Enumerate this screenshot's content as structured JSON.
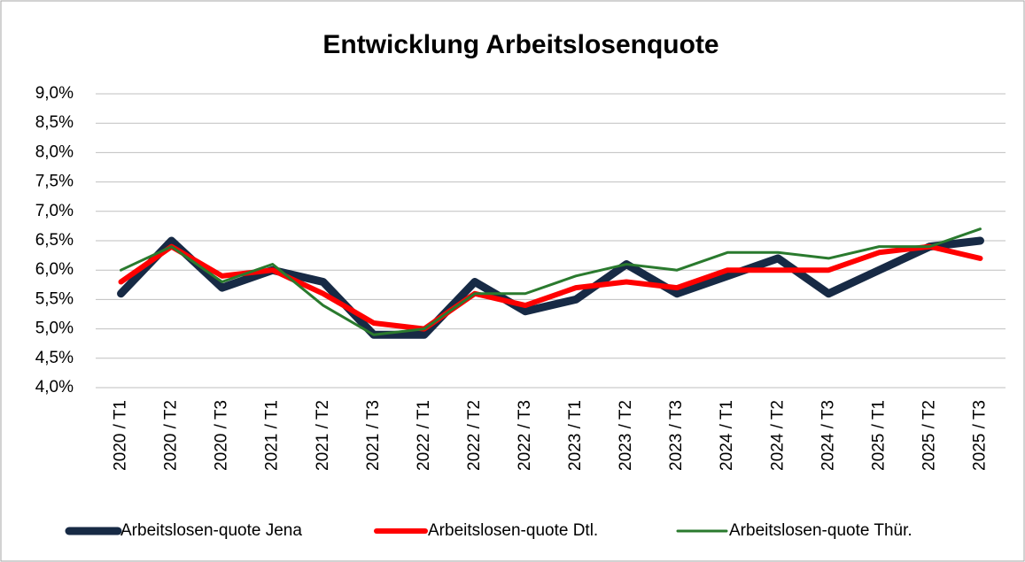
{
  "chart_data": {
    "type": "line",
    "title": "Entwicklung Arbeitslosenquote",
    "categories": [
      "2020 / T1",
      "2020 / T2",
      "2020 / T3",
      "2021 / T1",
      "2021 / T2",
      "2021 / T3",
      "2022 / T1",
      "2022 / T2",
      "2022 / T3",
      "2023 / T1",
      "2023 / T2",
      "2023 / T3",
      "2024 / T1",
      "2024 / T2",
      "2024 / T3",
      "2025 / T1",
      "2025 / T2",
      "2025 / T3"
    ],
    "series": [
      {
        "name": "Arbeitslosen-quote Jena",
        "color": "#172a45",
        "values": [
          5.6,
          6.5,
          5.7,
          6.0,
          5.8,
          4.9,
          4.9,
          5.8,
          5.3,
          5.5,
          6.1,
          5.6,
          5.9,
          6.2,
          5.6,
          6.0,
          6.4,
          6.5
        ]
      },
      {
        "name": "Arbeitslosen-quote Dtl.",
        "color": "#ff0000",
        "values": [
          5.8,
          6.4,
          5.9,
          6.0,
          5.6,
          5.1,
          5.0,
          5.6,
          5.4,
          5.7,
          5.8,
          5.7,
          6.0,
          6.0,
          6.0,
          6.3,
          6.4,
          6.2
        ]
      },
      {
        "name": "Arbeitslosen-quote Thür.",
        "color": "#2a7a2e",
        "values": [
          6.0,
          6.4,
          5.8,
          6.1,
          5.4,
          4.9,
          5.0,
          5.6,
          5.6,
          5.9,
          6.1,
          6.0,
          6.3,
          6.3,
          6.2,
          6.4,
          6.4,
          6.7
        ]
      }
    ],
    "ylim": [
      4.0,
      9.0
    ],
    "yticks": [
      {
        "value": 4.0,
        "label": "4,0%"
      },
      {
        "value": 4.5,
        "label": "4,5%"
      },
      {
        "value": 5.0,
        "label": "5,0%"
      },
      {
        "value": 5.5,
        "label": "5,5%"
      },
      {
        "value": 6.0,
        "label": "6,0%"
      },
      {
        "value": 6.5,
        "label": "6,5%"
      },
      {
        "value": 7.0,
        "label": "7,0%"
      },
      {
        "value": 7.5,
        "label": "7,5%"
      },
      {
        "value": 8.0,
        "label": "8,0%"
      },
      {
        "value": 8.5,
        "label": "8,5%"
      },
      {
        "value": 9.0,
        "label": "9,0%"
      }
    ],
    "grid": true,
    "legend": "bottom"
  }
}
